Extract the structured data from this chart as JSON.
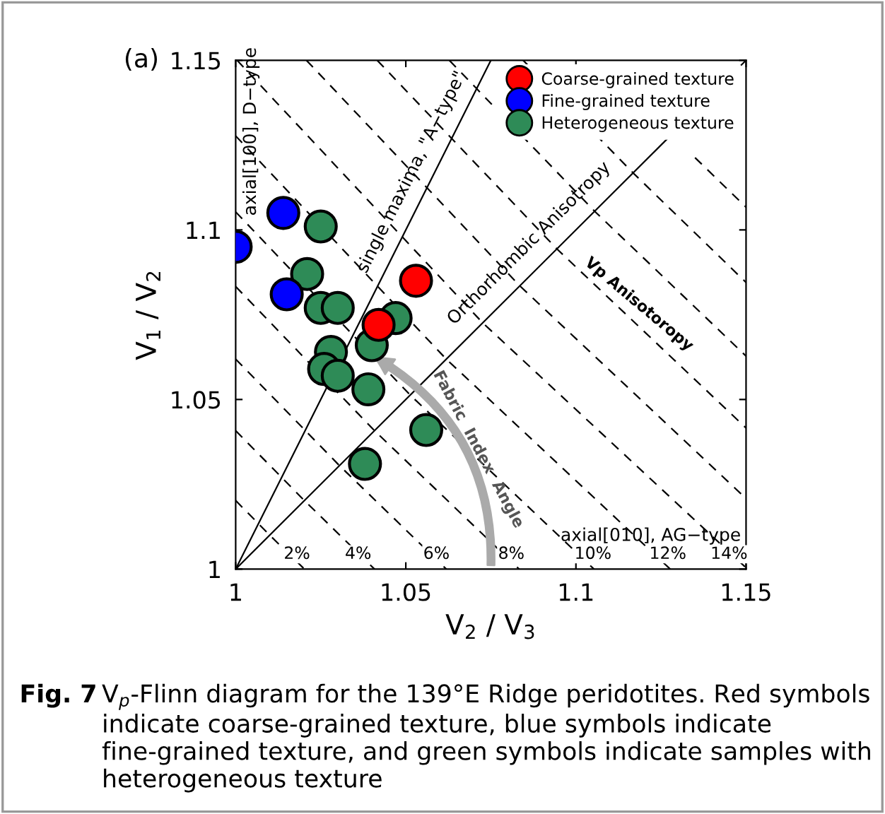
{
  "chart_data": {
    "type": "scatter",
    "xlabel": "V$_{2}$ / V$_{3}$",
    "ylabel": "V$_{1}$ / V$_{2}$",
    "xlim": [
      1,
      1.15
    ],
    "ylim": [
      1,
      1.15
    ],
    "xticks": [
      1,
      1.05,
      1.1,
      1.15
    ],
    "yticks": [
      1,
      1.05,
      1.1,
      1.15
    ],
    "legend": "top right",
    "series": [
      {
        "name": "Coarse-grained texture",
        "marker": "circle",
        "color": "#ff0000",
        "x": [
          1.053,
          1.042
        ],
        "values": [
          1.085,
          1.072
        ]
      },
      {
        "name": "Fine-grained texture",
        "marker": "circle",
        "color": "#0000ff",
        "x": [
          1.0,
          1.014,
          1.015
        ],
        "values": [
          1.095,
          1.105,
          1.081
        ]
      },
      {
        "name": "Heterogeneous texture",
        "marker": "circle",
        "color": "#2e8b57",
        "x": [
          1.025,
          1.021,
          1.025,
          1.03,
          1.047,
          1.028,
          1.04,
          1.026,
          1.03,
          1.039,
          1.056,
          1.038
        ],
        "values": [
          1.101,
          1.087,
          1.077,
          1.077,
          1.074,
          1.064,
          1.066,
          1.059,
          1.057,
          1.053,
          1.041,
          1.031
        ]
      },
      {
        "type": "line",
        "line_style": "solid",
        "color": "#000000",
        "x": [
          1,
          1.15
        ],
        "values": [
          1,
          1.15
        ]
      },
      {
        "type": "line",
        "line_style": "solid",
        "color": "#000000",
        "x": [
          1,
          1.075
        ],
        "values": [
          1,
          1.15
        ]
      },
      {
        "type": "line",
        "line_style": "dashed",
        "color": "#000000",
        "x": [
          1,
          1.01,
          1.0202
        ],
        "values": [
          1.0202,
          1.01,
          1
        ]
      },
      {
        "type": "line",
        "line_style": "dashed",
        "color": "#000000",
        "x": [
          1,
          1.0202,
          1.0408
        ],
        "values": [
          1.0408,
          1.0202,
          1
        ]
      },
      {
        "type": "line",
        "line_style": "dashed",
        "color": "#000000",
        "x": [
          1,
          1.0305,
          1.0619
        ],
        "values": [
          1.0619,
          1.0305,
          1
        ]
      },
      {
        "type": "line",
        "line_style": "dashed",
        "color": "#000000",
        "x": [
          1,
          1.0408,
          1.0833
        ],
        "values": [
          1.0833,
          1.0408,
          1
        ]
      },
      {
        "type": "line",
        "line_style": "dashed",
        "color": "#000000",
        "x": [
          1,
          1.0513,
          1.1053
        ],
        "values": [
          1.1053,
          1.0513,
          1
        ]
      },
      {
        "type": "line",
        "line_style": "dashed",
        "color": "#000000",
        "x": [
          1,
          1.0619,
          1.1277
        ],
        "values": [
          1.1277,
          1.0619,
          1
        ]
      },
      {
        "type": "line",
        "line_style": "dashed",
        "color": "#000000",
        "x": [
          1.0004,
          1.0726,
          1.15
        ],
        "values": [
          1.15,
          1.0726,
          1.0004
        ]
      },
      {
        "type": "line",
        "line_style": "dashed",
        "color": "#000000",
        "x": [
          1.0208,
          1.0835,
          1.15
        ],
        "values": [
          1.15,
          1.0835,
          1.0208
        ]
      },
      {
        "type": "line",
        "line_style": "dashed",
        "color": "#000000",
        "x": [
          1.0416,
          1.0944,
          1.15
        ],
        "values": [
          1.15,
          1.0944,
          1.0416
        ]
      },
      {
        "type": "line",
        "line_style": "dashed",
        "color": "#000000",
        "x": [
          1.0628,
          1.1055,
          1.15
        ],
        "values": [
          1.15,
          1.1055,
          1.0628
        ]
      },
      {
        "type": "line",
        "line_style": "dashed",
        "color": "#000000",
        "x": [
          1.0845,
          1.1168,
          1.15
        ],
        "values": [
          1.15,
          1.1168,
          1.0845
        ]
      },
      {
        "type": "line",
        "line_style": "dashed",
        "color": "#000000",
        "x": [
          1.135,
          1.15
        ],
        "values": [
          1.1213,
          1.1067
        ]
      }
    ],
    "annotations": [
      "(a)",
      "axial[100], D−type",
      "single maxima, \"A−type\"",
      "Orthorhombic Anisotropy",
      "Vp Anisotoropy",
      "Fabric  Index  Angle",
      "axial[010], AG−type",
      {
        "text": "2%",
        "x": 1.018,
        "y": 1.002
      },
      {
        "text": "4%",
        "x": 1.036,
        "y": 1.002
      },
      {
        "text": "6%",
        "x": 1.059,
        "y": 1.002
      },
      {
        "text": "8%",
        "x": 1.081,
        "y": 1.002
      },
      {
        "text": "10%",
        "x": 1.105,
        "y": 1.002
      },
      {
        "text": "12%",
        "x": 1.127,
        "y": 1.002
      },
      {
        "text": "14%",
        "x": 1.145,
        "y": 1.002
      },
      "Fig. 7",
      "V$_{p}$-Flinn diagram for the 139°E Ridge peridotites. Red symbols indicate coarse-grained texture, blue symbols indicate fine-grained texture, and green symbols indicate samples with heterogeneous texture"
    ]
  }
}
